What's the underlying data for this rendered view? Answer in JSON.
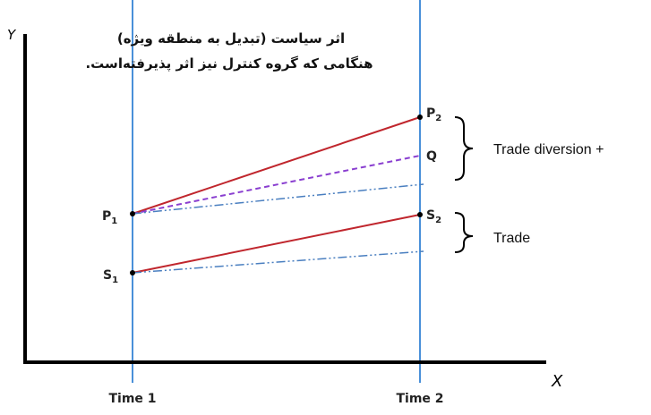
{
  "title": {
    "line1": "اثر سیاست (تبدیل به منطقه ویژه)",
    "line2": "هنگامی که گروه کنترل نیز اثر پذیرفته‌است."
  },
  "axes": {
    "y": "Y",
    "x": "X",
    "time1": "Time 1",
    "time2": "Time 2"
  },
  "points": {
    "p1": {
      "main": "P",
      "sub": "1"
    },
    "p2": {
      "main": "P",
      "sub": "2"
    },
    "q": "Q",
    "s1": {
      "main": "S",
      "sub": "1"
    },
    "s2": {
      "main": "S",
      "sub": "2"
    }
  },
  "braces": {
    "upper": "Trade diversion +",
    "lower": "Trade"
  }
}
